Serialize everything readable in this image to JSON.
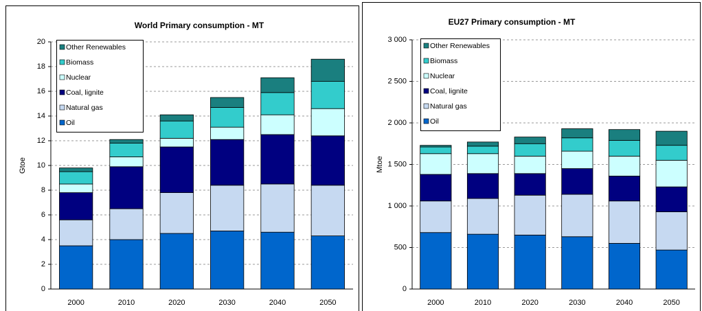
{
  "chart_data": [
    {
      "type": "bar",
      "stacked": true,
      "title": "World Primary consumption - MT",
      "y_label": "Gtoe",
      "categories": [
        "2000",
        "2010",
        "2020",
        "2030",
        "2040",
        "2050"
      ],
      "series": [
        {
          "name": "Oil",
          "color": "#0066cc",
          "values": [
            3.5,
            4.0,
            4.5,
            4.7,
            4.6,
            4.3
          ]
        },
        {
          "name": "Natural gas",
          "color": "#c6d9f1",
          "values": [
            2.1,
            2.5,
            3.3,
            3.7,
            3.9,
            4.1
          ]
        },
        {
          "name": "Coal, lignite",
          "color": "#000080",
          "values": [
            2.2,
            3.4,
            3.7,
            3.7,
            4.0,
            4.0
          ]
        },
        {
          "name": "Nuclear",
          "color": "#ccffff",
          "values": [
            0.7,
            0.8,
            0.7,
            1.0,
            1.6,
            2.2
          ]
        },
        {
          "name": "Biomass",
          "color": "#33cccc",
          "values": [
            1.0,
            1.1,
            1.4,
            1.6,
            1.8,
            2.2
          ]
        },
        {
          "name": "Other Renewables",
          "color": "#1a7f7f",
          "values": [
            0.3,
            0.3,
            0.5,
            0.8,
            1.2,
            1.8
          ]
        }
      ],
      "ylim": [
        0,
        20
      ],
      "yticks": [
        0,
        2,
        4,
        6,
        8,
        10,
        12,
        14,
        16,
        18,
        20
      ],
      "grid": true,
      "legend": "upper left"
    },
    {
      "type": "bar",
      "stacked": true,
      "title": "EU27 Primary consumption  - MT",
      "y_label": "Mtoe",
      "categories": [
        "2000",
        "2010",
        "2020",
        "2030",
        "2040",
        "2050"
      ],
      "series": [
        {
          "name": "Oil",
          "color": "#0066cc",
          "values": [
            680,
            660,
            650,
            630,
            550,
            470
          ]
        },
        {
          "name": "Natural gas",
          "color": "#c6d9f1",
          "values": [
            380,
            430,
            480,
            510,
            510,
            460
          ]
        },
        {
          "name": "Coal, lignite",
          "color": "#000080",
          "values": [
            320,
            300,
            260,
            310,
            300,
            300
          ]
        },
        {
          "name": "Nuclear",
          "color": "#ccffff",
          "values": [
            250,
            240,
            210,
            210,
            240,
            320
          ]
        },
        {
          "name": "Biomass",
          "color": "#33cccc",
          "values": [
            80,
            90,
            150,
            160,
            190,
            180
          ]
        },
        {
          "name": "Other Renewables",
          "color": "#1a7f7f",
          "values": [
            20,
            50,
            80,
            110,
            130,
            170
          ]
        }
      ],
      "ylim": [
        0,
        3000
      ],
      "yticks": [
        0,
        500,
        {
          "value": 1000,
          "label": "1 000"
        },
        {
          "value": 1500,
          "label": "1 500"
        },
        {
          "value": 2000,
          "label": "2 000"
        },
        {
          "value": 2500,
          "label": "2 500"
        },
        {
          "value": 3000,
          "label": "3 000"
        }
      ],
      "grid": true,
      "legend": "upper left"
    }
  ]
}
